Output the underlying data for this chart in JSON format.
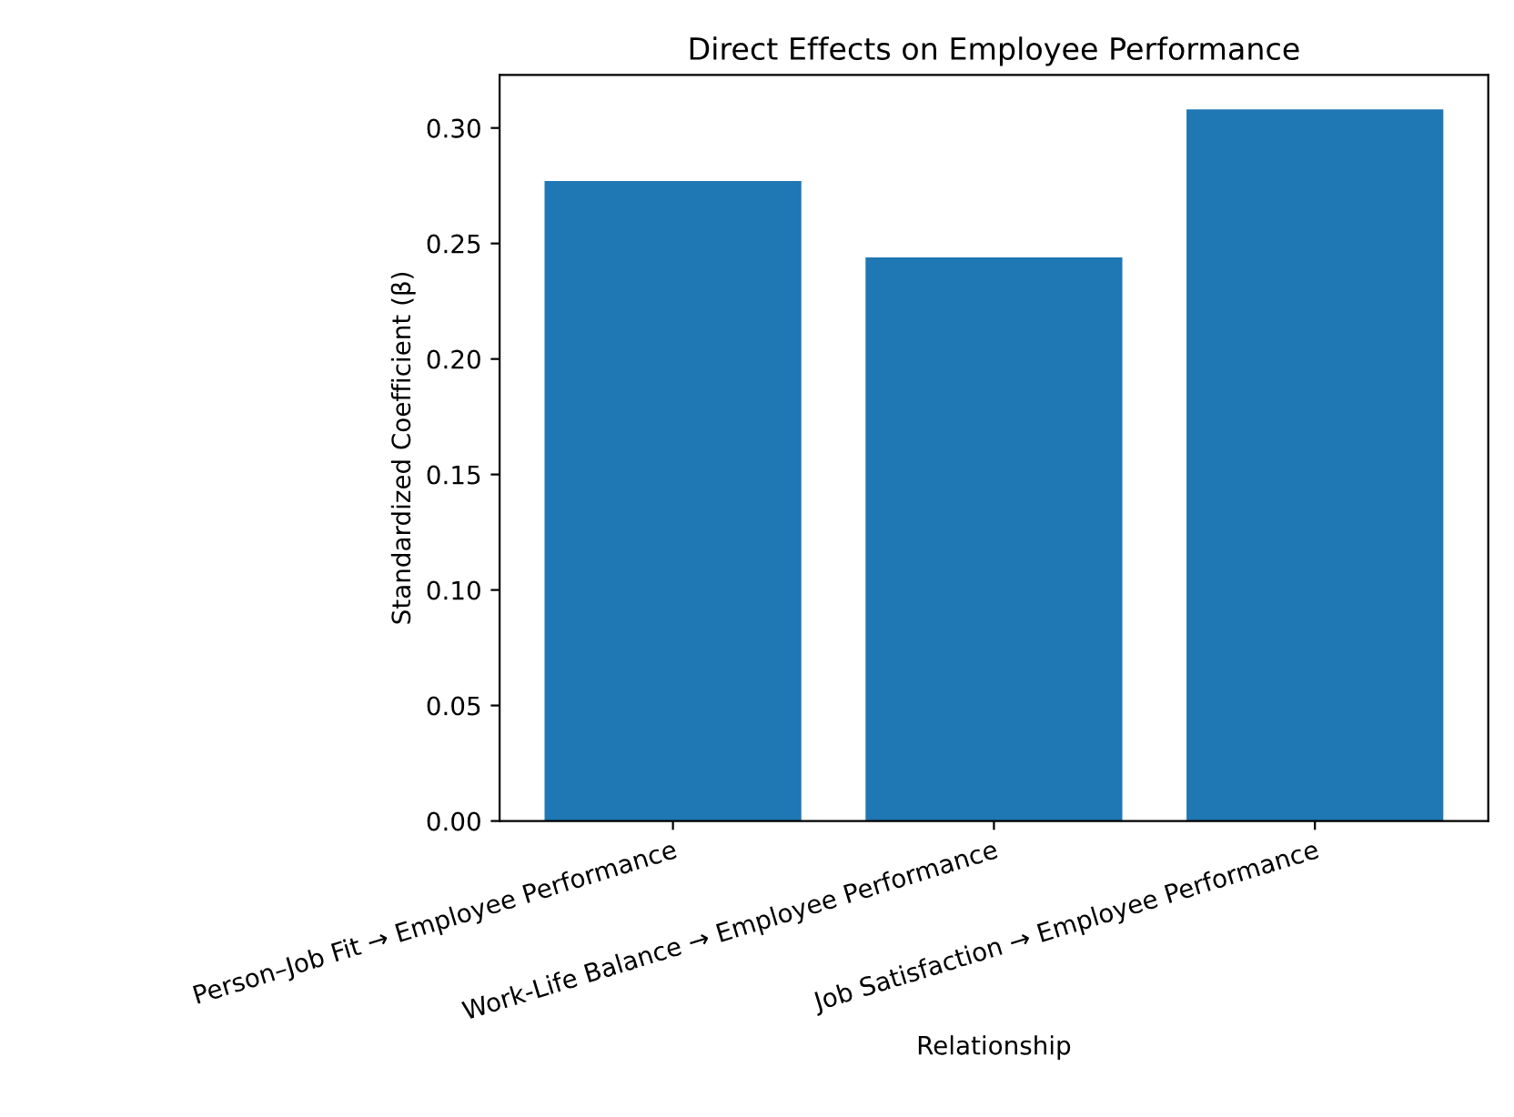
{
  "chart_data": {
    "type": "bar",
    "title": "Direct Effects on Employee Performance",
    "xlabel": "Relationship",
    "ylabel": "Standardized Coefficient (β)",
    "categories": [
      "Person–Job Fit → Employee Performance",
      "Work-Life Balance → Employee Performance",
      "Job Satisfaction → Employee Performance"
    ],
    "values": [
      0.277,
      0.244,
      0.308
    ],
    "color": "#1f77b4",
    "ylim": [
      0,
      0.323
    ],
    "yticks": [
      {
        "value": 0,
        "label": "0.00"
      },
      {
        "value": 0.05,
        "label": "0.05"
      },
      {
        "value": 0.1,
        "label": "0.10"
      },
      {
        "value": 0.15,
        "label": "0.15"
      },
      {
        "value": 0.2,
        "label": "0.20"
      },
      {
        "value": 0.25,
        "label": "0.25"
      },
      {
        "value": 0.3,
        "label": "0.30"
      }
    ],
    "grid": false
  }
}
